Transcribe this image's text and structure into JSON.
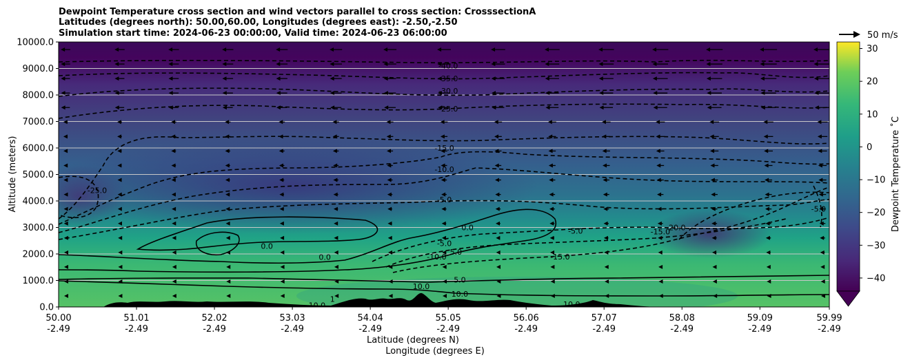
{
  "chart_data": {
    "type": "contour",
    "title_lines": [
      "Dewpoint Temperature cross section and wind vectors parallel to cross section: CrosssectionA",
      "Latitudes (degrees north): 50.00,60.00, Longitudes (degrees east): -2.50,-2.50",
      "Simulation start time: 2024-06-23 00:00:00, Valid time: 2024-06-23 06:00:00"
    ],
    "ylabel": "Altitude (meters)",
    "xlabel_lines": [
      "Latitude (degrees N)",
      "Longitude (degrees E)"
    ],
    "xlim": [
      50.0,
      59.99
    ],
    "ylim": [
      0,
      10000
    ],
    "x_ticks": [
      {
        "lat": "50.00",
        "lon": "-2.49",
        "value": 50.0
      },
      {
        "lat": "51.01",
        "lon": "-2.49",
        "value": 51.01
      },
      {
        "lat": "52.02",
        "lon": "-2.49",
        "value": 52.02
      },
      {
        "lat": "53.03",
        "lon": "-2.49",
        "value": 53.03
      },
      {
        "lat": "54.04",
        "lon": "-2.49",
        "value": 54.04
      },
      {
        "lat": "55.05",
        "lon": "-2.49",
        "value": 55.05
      },
      {
        "lat": "56.06",
        "lon": "-2.49",
        "value": 56.06
      },
      {
        "lat": "57.07",
        "lon": "-2.49",
        "value": 57.07
      },
      {
        "lat": "58.08",
        "lon": "-2.49",
        "value": 58.08
      },
      {
        "lat": "59.09",
        "lon": "-2.49",
        "value": 59.09
      },
      {
        "lat": "59.99",
        "lon": "-2.49",
        "value": 59.99
      }
    ],
    "y_ticks": [
      {
        "label": "0.0",
        "value": 0
      },
      {
        "label": "1000.0",
        "value": 1000
      },
      {
        "label": "2000.0",
        "value": 2000
      },
      {
        "label": "3000.0",
        "value": 3000
      },
      {
        "label": "4000.0",
        "value": 4000
      },
      {
        "label": "5000.0",
        "value": 5000
      },
      {
        "label": "6000.0",
        "value": 6000
      },
      {
        "label": "7000.0",
        "value": 7000
      },
      {
        "label": "8000.0",
        "value": 8000
      },
      {
        "label": "9000.0",
        "value": 9000
      },
      {
        "label": "10000.0",
        "value": 10000
      }
    ],
    "grid": "horizontal",
    "colormap": "viridis",
    "colorbar": {
      "label": "Dewpoint Temperature ˚C",
      "range": [
        -44,
        32
      ],
      "extend": "min",
      "ticks": [
        {
          "label": "−40",
          "value": -40
        },
        {
          "label": "−30",
          "value": -30
        },
        {
          "label": "−20",
          "value": -20
        },
        {
          "label": "−10",
          "value": -10
        },
        {
          "label": "0",
          "value": 0
        },
        {
          "label": "10",
          "value": 10
        },
        {
          "label": "20",
          "value": 20
        },
        {
          "label": "30",
          "value": 30
        }
      ]
    },
    "wind_key": {
      "label": "50 m/s"
    },
    "contour_levels_dashed": [
      -40,
      -35,
      -30,
      -25,
      -20,
      -15,
      -10,
      -5
    ],
    "contour_levels_solid": [
      0,
      5,
      10
    ],
    "contour_labels": [
      {
        "text": "-40.0",
        "x": 55.05,
        "y": 9100
      },
      {
        "text": "-35.0",
        "x": 55.05,
        "y": 8620
      },
      {
        "text": "-30.0",
        "x": 55.05,
        "y": 8150
      },
      {
        "text": "-25.0",
        "x": 55.05,
        "y": 7480
      },
      {
        "text": "-15.0",
        "x": 55.0,
        "y": 6000
      },
      {
        "text": "-10.0",
        "x": 55.0,
        "y": 5200
      },
      {
        "text": "-5.0",
        "x": 55.0,
        "y": 4050
      },
      {
        "text": "0.0",
        "x": 55.3,
        "y": 3000
      },
      {
        "text": "-5.0",
        "x": 55.0,
        "y": 2400
      },
      {
        "text": "-10.0",
        "x": 54.9,
        "y": 1900
      },
      {
        "text": "5.0",
        "x": 55.15,
        "y": 2080
      },
      {
        "text": "0.0",
        "x": 52.7,
        "y": 2300
      },
      {
        "text": "0.0",
        "x": 53.45,
        "y": 1880
      },
      {
        "text": "5.0",
        "x": 55.2,
        "y": 1020
      },
      {
        "text": "10.0",
        "x": 55.2,
        "y": 500
      },
      {
        "text": "10.0",
        "x": 54.7,
        "y": 780
      },
      {
        "text": "10.0",
        "x": 53.35,
        "y": 60
      },
      {
        "text": "10.0",
        "x": 56.65,
        "y": 100
      },
      {
        "text": "1",
        "x": 53.55,
        "y": 300
      },
      {
        "text": "-25.0",
        "x": 50.5,
        "y": 4400
      },
      {
        "text": "-5.0",
        "x": 56.7,
        "y": 2870
      },
      {
        "text": "-15.0",
        "x": 56.5,
        "y": 1890
      },
      {
        "text": "-15.0",
        "x": 57.8,
        "y": 2840
      },
      {
        "text": "-20.0",
        "x": 58.0,
        "y": 3000
      },
      {
        "text": "-5.0",
        "x": 59.85,
        "y": 3700
      }
    ]
  }
}
